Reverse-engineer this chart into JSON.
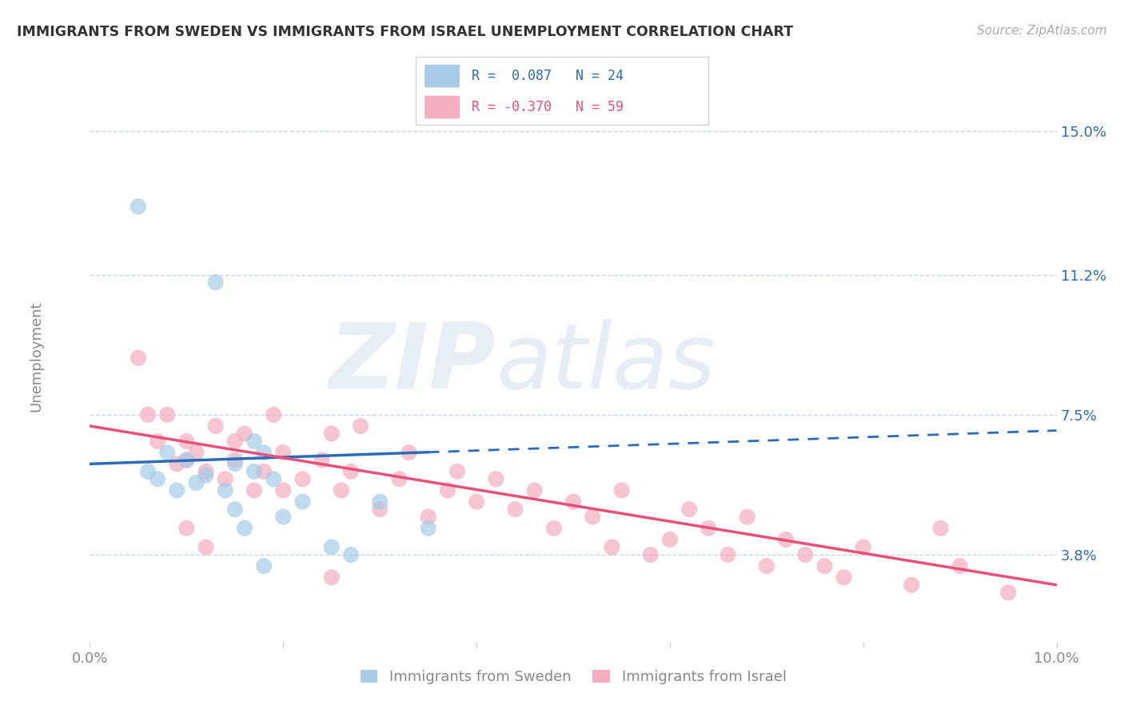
{
  "title": "IMMIGRANTS FROM SWEDEN VS IMMIGRANTS FROM ISRAEL UNEMPLOYMENT CORRELATION CHART",
  "source_text": "Source: ZipAtlas.com",
  "ylabel": "Unemployment",
  "xlim": [
    0.0,
    0.1
  ],
  "ylim": [
    0.015,
    0.162
  ],
  "yticks": [
    0.038,
    0.075,
    0.112,
    0.15
  ],
  "ytick_labels": [
    "3.8%",
    "7.5%",
    "11.2%",
    "15.0%"
  ],
  "xtick_positions": [
    0.0,
    0.02,
    0.04,
    0.06,
    0.08,
    0.1
  ],
  "xtick_labels": [
    "0.0%",
    "",
    "",
    "",
    "",
    "10.0%"
  ],
  "watermark_zip": "ZIP",
  "watermark_atlas": "atlas",
  "sweden_color": "#a8cce8",
  "israel_color": "#f5aec0",
  "trend_sweden_color": "#2b6cb8",
  "trend_israel_color": "#e8507a",
  "background_color": "#ffffff",
  "grid_color": "#c8d4e8",
  "sweden_x": [
    0.005,
    0.006,
    0.007,
    0.008,
    0.009,
    0.01,
    0.011,
    0.012,
    0.013,
    0.014,
    0.015,
    0.016,
    0.017,
    0.018,
    0.019,
    0.02,
    0.022,
    0.025,
    0.027,
    0.03,
    0.035,
    0.017,
    0.018,
    0.015
  ],
  "sweden_y": [
    0.13,
    0.06,
    0.058,
    0.065,
    0.055,
    0.063,
    0.057,
    0.059,
    0.11,
    0.055,
    0.05,
    0.045,
    0.06,
    0.065,
    0.058,
    0.048,
    0.052,
    0.04,
    0.038,
    0.052,
    0.045,
    0.068,
    0.035,
    0.062
  ],
  "israel_x": [
    0.005,
    0.006,
    0.007,
    0.008,
    0.009,
    0.01,
    0.01,
    0.011,
    0.012,
    0.013,
    0.014,
    0.015,
    0.016,
    0.017,
    0.018,
    0.019,
    0.02,
    0.022,
    0.024,
    0.025,
    0.026,
    0.027,
    0.028,
    0.03,
    0.032,
    0.033,
    0.035,
    0.037,
    0.038,
    0.04,
    0.042,
    0.044,
    0.046,
    0.048,
    0.05,
    0.052,
    0.054,
    0.055,
    0.058,
    0.06,
    0.062,
    0.064,
    0.066,
    0.068,
    0.07,
    0.072,
    0.074,
    0.076,
    0.078,
    0.08,
    0.085,
    0.088,
    0.09,
    0.095,
    0.01,
    0.012,
    0.015,
    0.02,
    0.025
  ],
  "israel_y": [
    0.09,
    0.075,
    0.068,
    0.075,
    0.062,
    0.063,
    0.068,
    0.065,
    0.06,
    0.072,
    0.058,
    0.063,
    0.07,
    0.055,
    0.06,
    0.075,
    0.065,
    0.058,
    0.063,
    0.07,
    0.055,
    0.06,
    0.072,
    0.05,
    0.058,
    0.065,
    0.048,
    0.055,
    0.06,
    0.052,
    0.058,
    0.05,
    0.055,
    0.045,
    0.052,
    0.048,
    0.04,
    0.055,
    0.038,
    0.042,
    0.05,
    0.045,
    0.038,
    0.048,
    0.035,
    0.042,
    0.038,
    0.035,
    0.032,
    0.04,
    0.03,
    0.045,
    0.035,
    0.028,
    0.045,
    0.04,
    0.068,
    0.055,
    0.032
  ]
}
